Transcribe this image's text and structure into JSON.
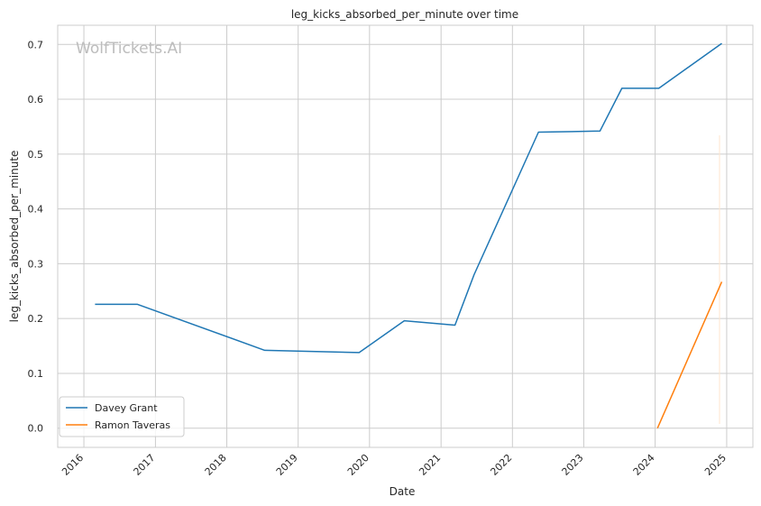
{
  "chart_data": {
    "type": "line",
    "title": "leg_kicks_absorbed_per_minute over time",
    "xlabel": "Date",
    "ylabel": "leg_kicks_absorbed_per_minute",
    "watermark": "WolfTickets.AI",
    "xlim": [
      "2015-08-20",
      "2025-05-15"
    ],
    "ylim": [
      -0.035,
      0.735
    ],
    "x_ticks": [
      "2016",
      "2017",
      "2018",
      "2019",
      "2020",
      "2021",
      "2022",
      "2023",
      "2024",
      "2025"
    ],
    "y_ticks": [
      "0.0",
      "0.1",
      "0.2",
      "0.3",
      "0.4",
      "0.5",
      "0.6",
      "0.7"
    ],
    "grid": true,
    "legend_position": "lower-left",
    "series": [
      {
        "name": "Davey Grant",
        "color": "#1f77b4",
        "points": [
          {
            "x": "2016-02-27",
            "y": 0.226
          },
          {
            "x": "2016-10-01",
            "y": 0.226
          },
          {
            "x": "2018-07-14",
            "y": 0.142
          },
          {
            "x": "2019-11-09",
            "y": 0.138
          },
          {
            "x": "2020-06-27",
            "y": 0.196
          },
          {
            "x": "2021-03-13",
            "y": 0.188
          },
          {
            "x": "2021-06-19",
            "y": 0.28
          },
          {
            "x": "2022-05-14",
            "y": 0.54
          },
          {
            "x": "2023-03-25",
            "y": 0.542
          },
          {
            "x": "2023-07-15",
            "y": 0.62
          },
          {
            "x": "2024-01-20",
            "y": 0.62
          },
          {
            "x": "2024-12-07",
            "y": 0.702
          }
        ]
      },
      {
        "name": "Ramon Taveras",
        "color": "#ff7f0e",
        "points": [
          {
            "x": "2024-01-13",
            "y": 0.0
          },
          {
            "x": "2024-12-07",
            "y": 0.267
          }
        ]
      }
    ]
  }
}
